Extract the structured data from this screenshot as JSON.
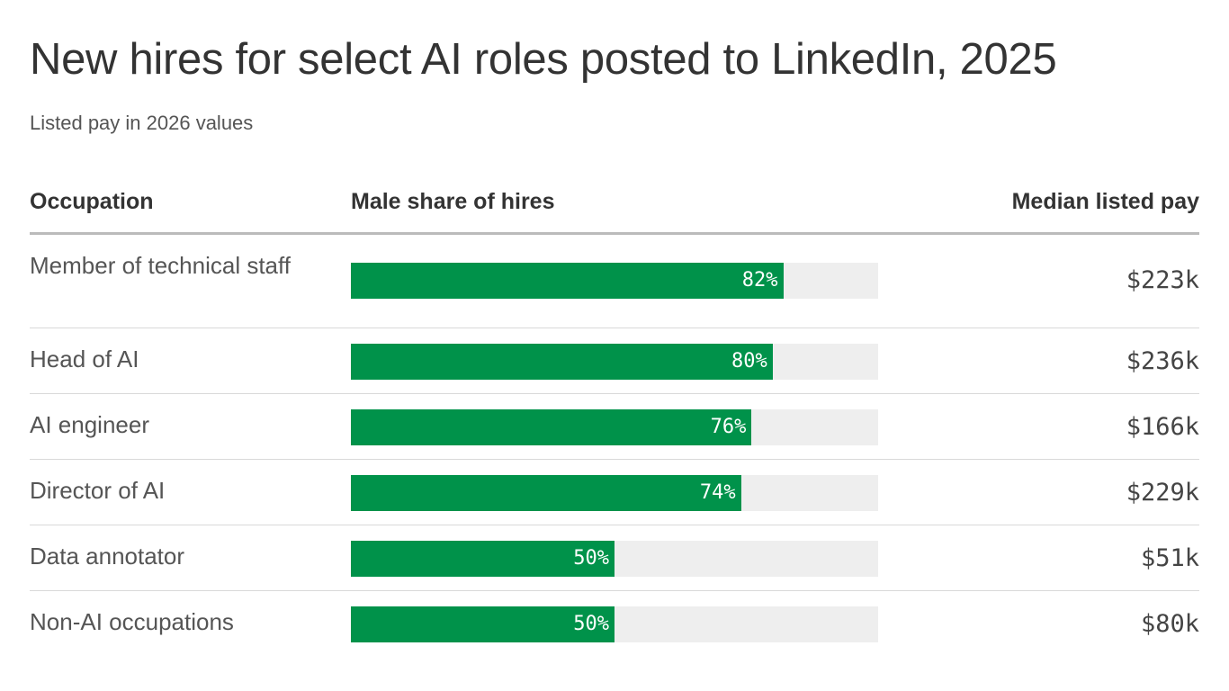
{
  "title": "New hires for select AI roles posted to LinkedIn, 2025",
  "subtitle": "Listed pay in 2026 values",
  "columns": {
    "occupation": "Occupation",
    "share": "Male share of hires",
    "pay": "Median listed pay"
  },
  "colors": {
    "bar": "#00924a",
    "track": "#eeeeee",
    "header_rule": "#bbbbbb",
    "row_rule": "#d9d9d9"
  },
  "chart_data": {
    "type": "bar",
    "orientation": "horizontal",
    "xlim": [
      0,
      100
    ],
    "grid": false,
    "categories": [
      "Member of technical staff",
      "Head of AI",
      "AI engineer",
      "Director of AI",
      "Data annotator",
      "Non-AI occupations"
    ],
    "values": [
      82,
      80,
      76,
      74,
      50,
      50
    ],
    "value_labels": [
      "82%",
      "80%",
      "76%",
      "74%",
      "50%",
      "50%"
    ],
    "median_pay": [
      "$223k",
      "$236k",
      "$166k",
      "$229k",
      "$51k",
      "$80k"
    ]
  }
}
